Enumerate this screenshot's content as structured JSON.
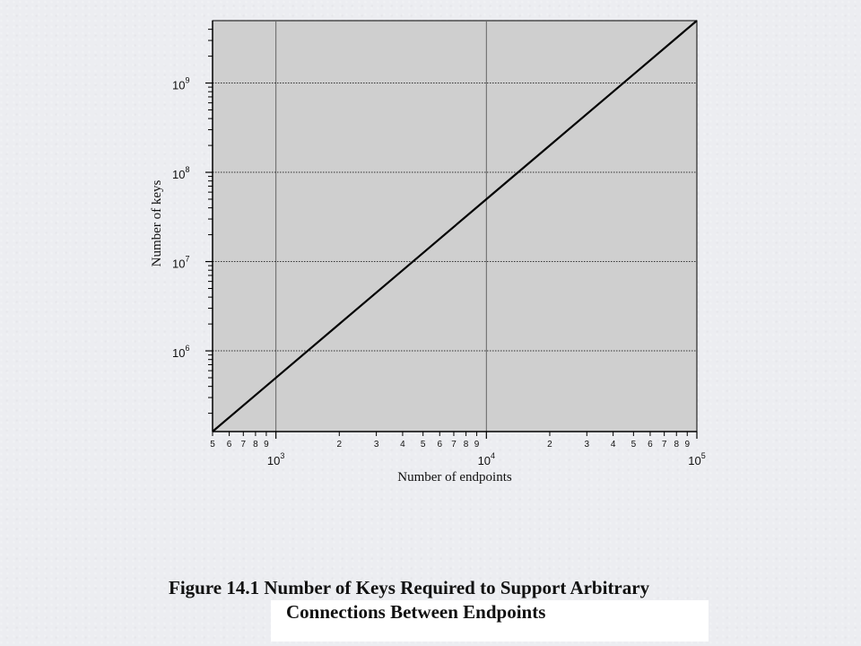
{
  "chart_data": {
    "type": "line",
    "xlabel": "Number of endpoints",
    "ylabel": "Number of keys",
    "x_scale": "log",
    "y_scale": "log",
    "xlim": [
      500,
      100000
    ],
    "ylim": [
      124750,
      5000000000
    ],
    "grid": true,
    "x_major_ticks": [
      {
        "value": 1000,
        "base": "10",
        "exp": "3"
      },
      {
        "value": 10000,
        "base": "10",
        "exp": "4"
      },
      {
        "value": 100000,
        "base": "10",
        "exp": "5"
      }
    ],
    "x_minor_ticks": [
      {
        "value": 500,
        "label": "5"
      },
      {
        "value": 600,
        "label": "6"
      },
      {
        "value": 700,
        "label": "7"
      },
      {
        "value": 800,
        "label": "8"
      },
      {
        "value": 900,
        "label": "9"
      },
      {
        "value": 2000,
        "label": "2"
      },
      {
        "value": 3000,
        "label": "3"
      },
      {
        "value": 4000,
        "label": "4"
      },
      {
        "value": 5000,
        "label": "5"
      },
      {
        "value": 6000,
        "label": "6"
      },
      {
        "value": 7000,
        "label": "7"
      },
      {
        "value": 8000,
        "label": "8"
      },
      {
        "value": 9000,
        "label": "9"
      },
      {
        "value": 20000,
        "label": "2"
      },
      {
        "value": 30000,
        "label": "3"
      },
      {
        "value": 40000,
        "label": "4"
      },
      {
        "value": 50000,
        "label": "5"
      },
      {
        "value": 60000,
        "label": "6"
      },
      {
        "value": 70000,
        "label": "7"
      },
      {
        "value": 80000,
        "label": "8"
      },
      {
        "value": 90000,
        "label": "9"
      }
    ],
    "y_major_ticks": [
      {
        "value": 1000000,
        "base": "10",
        "exp": "6"
      },
      {
        "value": 10000000,
        "base": "10",
        "exp": "7"
      },
      {
        "value": 100000000,
        "base": "10",
        "exp": "8"
      },
      {
        "value": 1000000000,
        "base": "10",
        "exp": "9"
      }
    ],
    "series": [
      {
        "x": [
          500,
          1000,
          2000,
          5000,
          10000,
          20000,
          50000,
          100000
        ],
        "y": [
          124750,
          499500,
          1999000,
          12497500,
          49995000,
          199990000,
          1249975000,
          4999950000
        ]
      }
    ]
  },
  "caption": {
    "line1": "Figure 14.1  Number of Keys Required to Support Arbitrary",
    "line2": "Connections Between Endpoints"
  },
  "colors": {
    "plot_background": "#cfcfcf",
    "series_line": "#000000",
    "grid_major": "#666666",
    "caption_box": "#ffffff"
  }
}
